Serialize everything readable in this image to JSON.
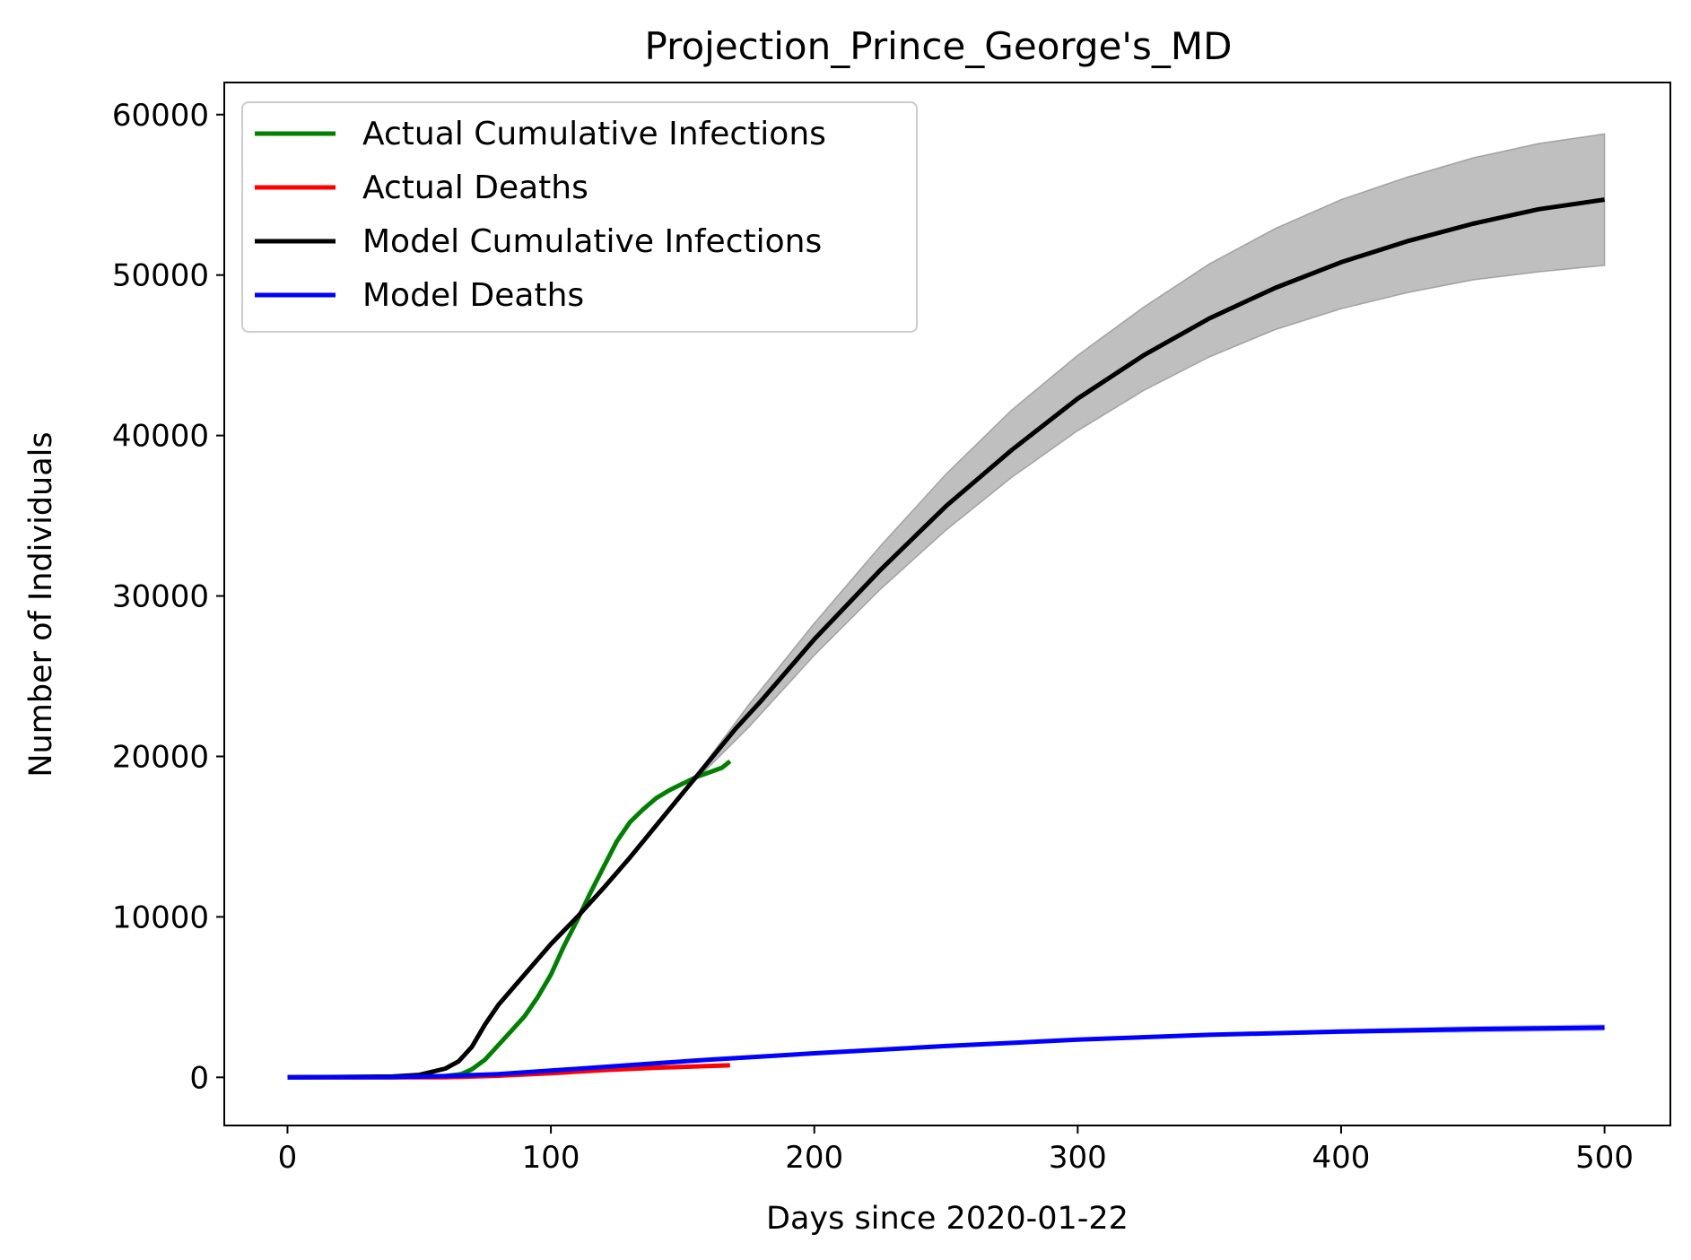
{
  "chart_data": {
    "type": "line",
    "title": "Projection_Prince_George's_MD",
    "xlabel": "Days since 2020-01-22",
    "ylabel": "Number of Individuals",
    "xlim": [
      -24,
      525
    ],
    "ylim": [
      -3000,
      62000
    ],
    "xticks": [
      0,
      100,
      200,
      300,
      400,
      500
    ],
    "yticks": [
      0,
      10000,
      20000,
      30000,
      40000,
      50000,
      60000
    ],
    "grid": false,
    "legend_position": "top-left",
    "series": [
      {
        "name": "Actual Cumulative Infections",
        "color": "#008000",
        "x": [
          0,
          40,
          60,
          66,
          70,
          75,
          80,
          85,
          90,
          95,
          100,
          105,
          110,
          115,
          120,
          125,
          130,
          135,
          140,
          145,
          150,
          155,
          160,
          165,
          168
        ],
        "y": [
          0,
          0,
          80,
          200,
          500,
          1100,
          2000,
          2900,
          3800,
          5000,
          6400,
          8200,
          9800,
          11500,
          13100,
          14700,
          15900,
          16700,
          17400,
          17900,
          18300,
          18700,
          19000,
          19300,
          19700
        ]
      },
      {
        "name": "Actual Deaths",
        "color": "#ff0000",
        "x": [
          0,
          60,
          80,
          100,
          120,
          140,
          168
        ],
        "y": [
          0,
          0,
          100,
          250,
          450,
          600,
          750
        ]
      },
      {
        "name": "Model Cumulative Infections",
        "color": "#000000",
        "x": [
          0,
          40,
          50,
          60,
          65,
          70,
          75,
          80,
          90,
          100,
          110,
          120,
          130,
          140,
          150,
          160,
          170,
          180,
          200,
          225,
          250,
          275,
          300,
          325,
          350,
          375,
          400,
          425,
          450,
          475,
          500
        ],
        "y": [
          0,
          50,
          150,
          550,
          1000,
          1900,
          3300,
          4500,
          6400,
          8300,
          10000,
          11800,
          13700,
          15700,
          17700,
          19700,
          21700,
          23500,
          27300,
          31600,
          35600,
          39100,
          42300,
          45000,
          47300,
          49200,
          50800,
          52100,
          53200,
          54100,
          54700
        ]
      },
      {
        "name": "Model Deaths",
        "color": "#0000ff",
        "x": [
          0,
          40,
          60,
          80,
          100,
          120,
          140,
          160,
          180,
          200,
          250,
          300,
          350,
          400,
          450,
          500
        ],
        "y": [
          0,
          20,
          80,
          200,
          420,
          650,
          880,
          1100,
          1300,
          1500,
          1950,
          2350,
          2650,
          2850,
          3000,
          3100
        ]
      }
    ],
    "band": {
      "x": [
        150,
        175,
        200,
        225,
        250,
        275,
        300,
        325,
        350,
        375,
        400,
        425,
        450,
        475,
        500
      ],
      "lower": [
        17700,
        21800,
        26300,
        30400,
        34100,
        37400,
        40300,
        42800,
        44900,
        46600,
        47900,
        48900,
        49700,
        50200,
        50600
      ],
      "upper": [
        17700,
        23200,
        28300,
        33100,
        37600,
        41600,
        45000,
        48000,
        50700,
        52900,
        54700,
        56100,
        57300,
        58200,
        58800
      ],
      "color": "#bfbfbf"
    },
    "death_band": {
      "x": [
        300,
        350,
        400,
        450,
        500
      ],
      "lower": [
        2300,
        2550,
        2700,
        2800,
        2900
      ],
      "upper": [
        2400,
        2750,
        3000,
        3200,
        3300
      ],
      "color": "#9999ff"
    }
  }
}
